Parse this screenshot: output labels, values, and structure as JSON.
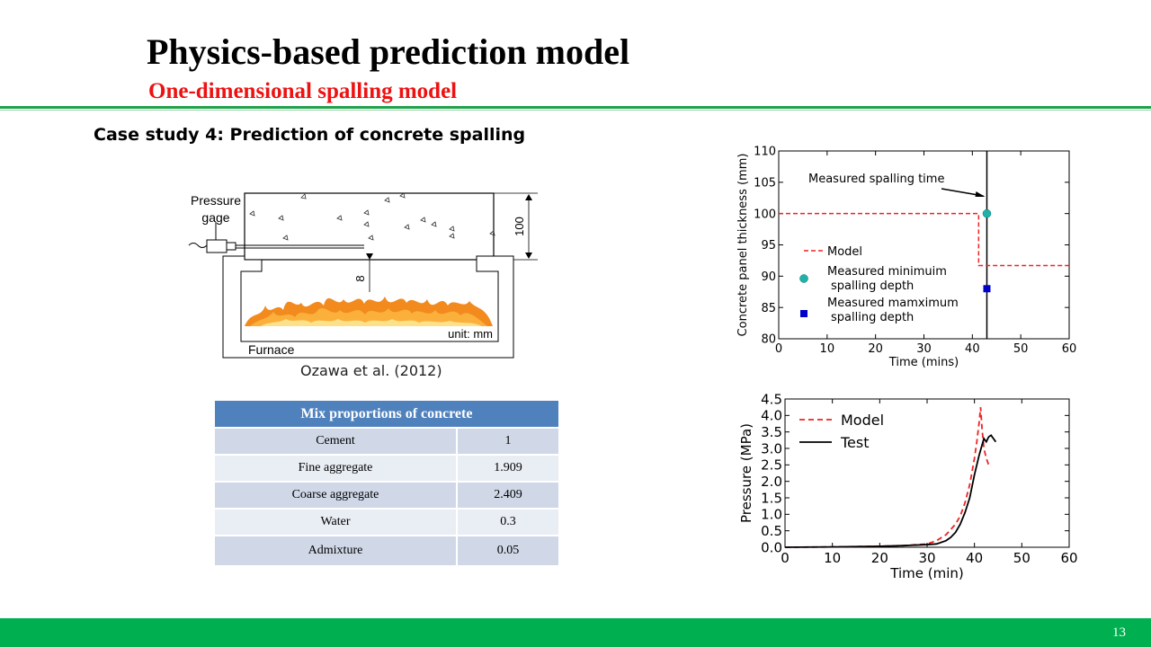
{
  "slide": {
    "title": "Physics-based prediction model",
    "subtitle": "One-dimensional spalling model",
    "case_study": "Case study 4: Prediction of concrete spalling",
    "page_number": "13"
  },
  "diagram": {
    "pressure_gage_label_1": "Pressure",
    "pressure_gage_label_2": "gage",
    "thickness_label": "100",
    "depth_label": "8",
    "unit_label": "unit: mm",
    "furnace_label": "Furnace",
    "citation": "Ozawa et al. (2012)"
  },
  "table": {
    "header": "Mix proportions of concrete",
    "rows": [
      {
        "name": "Cement",
        "value": "1"
      },
      {
        "name": "Fine aggregate",
        "value": "1.909"
      },
      {
        "name": "Coarse aggregate",
        "value": "2.409"
      },
      {
        "name": "Water",
        "value": "0.3"
      },
      {
        "name": "Admixture",
        "value": "0.05"
      }
    ]
  },
  "chart_data": [
    {
      "type": "line",
      "xlabel": "Time (mins)",
      "ylabel": "Concrete panel thickness (mm)",
      "xlim": [
        0,
        60
      ],
      "ylim": [
        80,
        110
      ],
      "xticks": [
        0,
        10,
        20,
        30,
        40,
        50,
        60
      ],
      "yticks": [
        80,
        85,
        90,
        95,
        100,
        105,
        110
      ],
      "grid": false,
      "legend_position": "left",
      "series": [
        {
          "name": "Model",
          "style": "dashed",
          "color": "#ee2222",
          "x": [
            0,
            41.3,
            41.3,
            60
          ],
          "y": [
            100,
            100,
            91.7,
            91.7
          ]
        },
        {
          "name": "Measured minimuim spalling depth",
          "style": "marker-circle",
          "color": "#20b2aa",
          "x": [
            43
          ],
          "y": [
            100
          ]
        },
        {
          "name": "Measured mamximum spalling depth",
          "style": "marker-square",
          "color": "#0000cc",
          "x": [
            43
          ],
          "y": [
            88
          ]
        }
      ],
      "vertical_line_x": 43,
      "annotation": {
        "text": "Measured spalling time",
        "x": 43,
        "y": 103
      }
    },
    {
      "type": "line",
      "xlabel": "Time (min)",
      "ylabel": "Pressure (MPa)",
      "xlim": [
        0,
        60
      ],
      "ylim": [
        0,
        4.5
      ],
      "xticks": [
        0,
        10,
        20,
        30,
        40,
        50,
        60
      ],
      "yticks": [
        0.0,
        0.5,
        1.0,
        1.5,
        2.0,
        2.5,
        3.0,
        3.5,
        4.0,
        4.5
      ],
      "grid": false,
      "legend_position": "top-left",
      "series": [
        {
          "name": "Model",
          "style": "dashed",
          "color": "#ee2222",
          "x": [
            0,
            10,
            20,
            25,
            30,
            32,
            34,
            36,
            37,
            38,
            39,
            40,
            40.5,
            41,
            41.3,
            41.6,
            42,
            42.5,
            43
          ],
          "y": [
            0,
            0.01,
            0.03,
            0.05,
            0.1,
            0.2,
            0.38,
            0.7,
            0.95,
            1.35,
            1.9,
            2.7,
            3.2,
            3.8,
            4.25,
            3.6,
            3.0,
            2.7,
            2.5
          ]
        },
        {
          "name": "Test",
          "style": "solid",
          "color": "#000000",
          "x": [
            0,
            10,
            20,
            25,
            30,
            32,
            34,
            35,
            36,
            37,
            38,
            39,
            40,
            41,
            41.5,
            42,
            42.5,
            43,
            43.5,
            44,
            44.5
          ],
          "y": [
            0,
            0.01,
            0.03,
            0.05,
            0.08,
            0.1,
            0.2,
            0.3,
            0.45,
            0.7,
            1.05,
            1.5,
            2.2,
            2.8,
            3.05,
            3.3,
            3.2,
            3.35,
            3.4,
            3.3,
            3.2
          ]
        }
      ]
    }
  ]
}
